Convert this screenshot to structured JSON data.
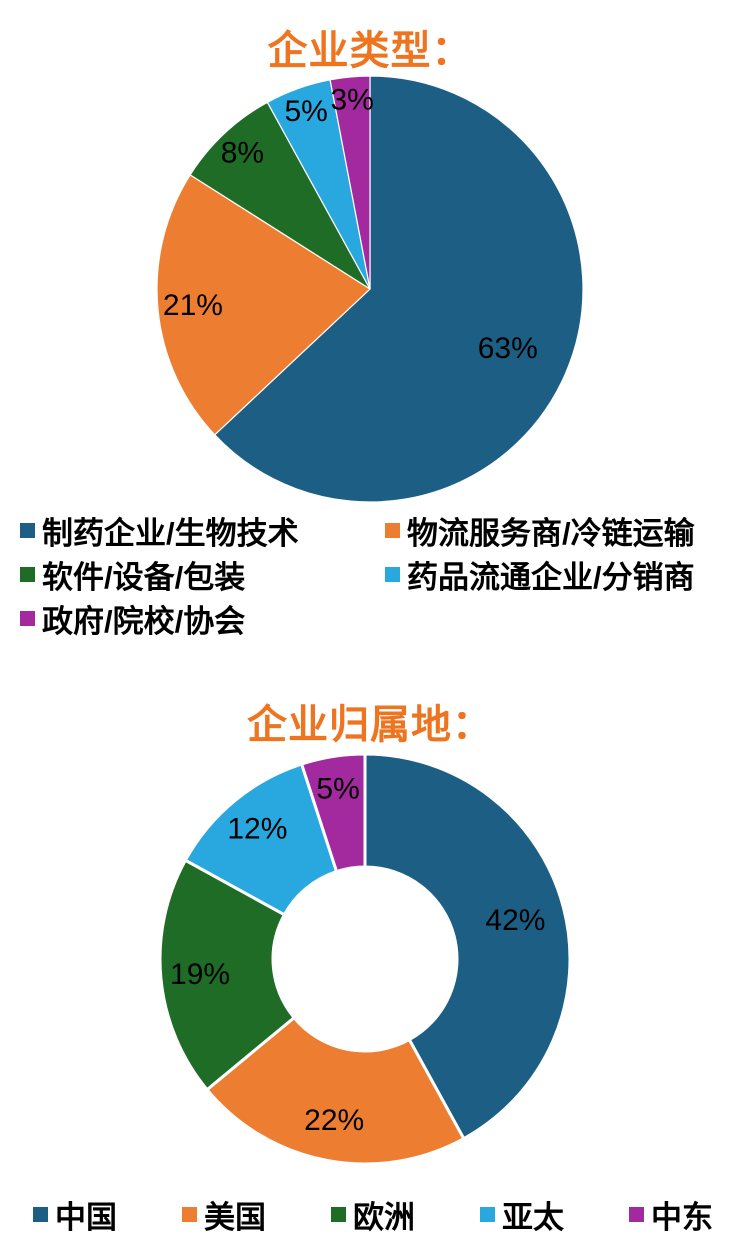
{
  "page": {
    "background": "#ffffff",
    "title_color": "#EE7420",
    "label_color": "#000000"
  },
  "palette": {
    "teal": "#1D5F84",
    "orange": "#ED7D31",
    "green": "#1F6C26",
    "light_blue": "#29A8E0",
    "purple": "#A3299E"
  },
  "chart_data": [
    {
      "type": "pie",
      "title": "企业类型：",
      "categories": [
        "制药企业/生物技术",
        "物流服务商/冷链运输",
        "软件/设备/包装",
        "药品流通企业/分销商",
        "政府/院校/协会"
      ],
      "values": [
        63,
        21,
        8,
        5,
        3
      ],
      "labels": [
        "63%",
        "21%",
        "8%",
        "5%",
        "3%"
      ],
      "colors": [
        "#1D5F84",
        "#ED7D31",
        "#1F6C26",
        "#29A8E0",
        "#A3299E"
      ],
      "donut": false,
      "start_angle_deg": 0,
      "direction": "clockwise",
      "legend_position": "bottom",
      "legend_columns": 2
    },
    {
      "type": "pie",
      "title": "企业归属地：",
      "categories": [
        "中国",
        "美国",
        "欧洲",
        "亚太",
        "中东"
      ],
      "values": [
        42,
        22,
        19,
        12,
        5
      ],
      "labels": [
        "42%",
        "22%",
        "19%",
        "12%",
        "5%"
      ],
      "colors": [
        "#1D5F84",
        "#ED7D31",
        "#1F6C26",
        "#29A8E0",
        "#A3299E"
      ],
      "donut": true,
      "inner_radius_ratio": 0.45,
      "start_angle_deg": 0,
      "direction": "clockwise",
      "legend_position": "bottom",
      "legend_columns": 5
    }
  ]
}
